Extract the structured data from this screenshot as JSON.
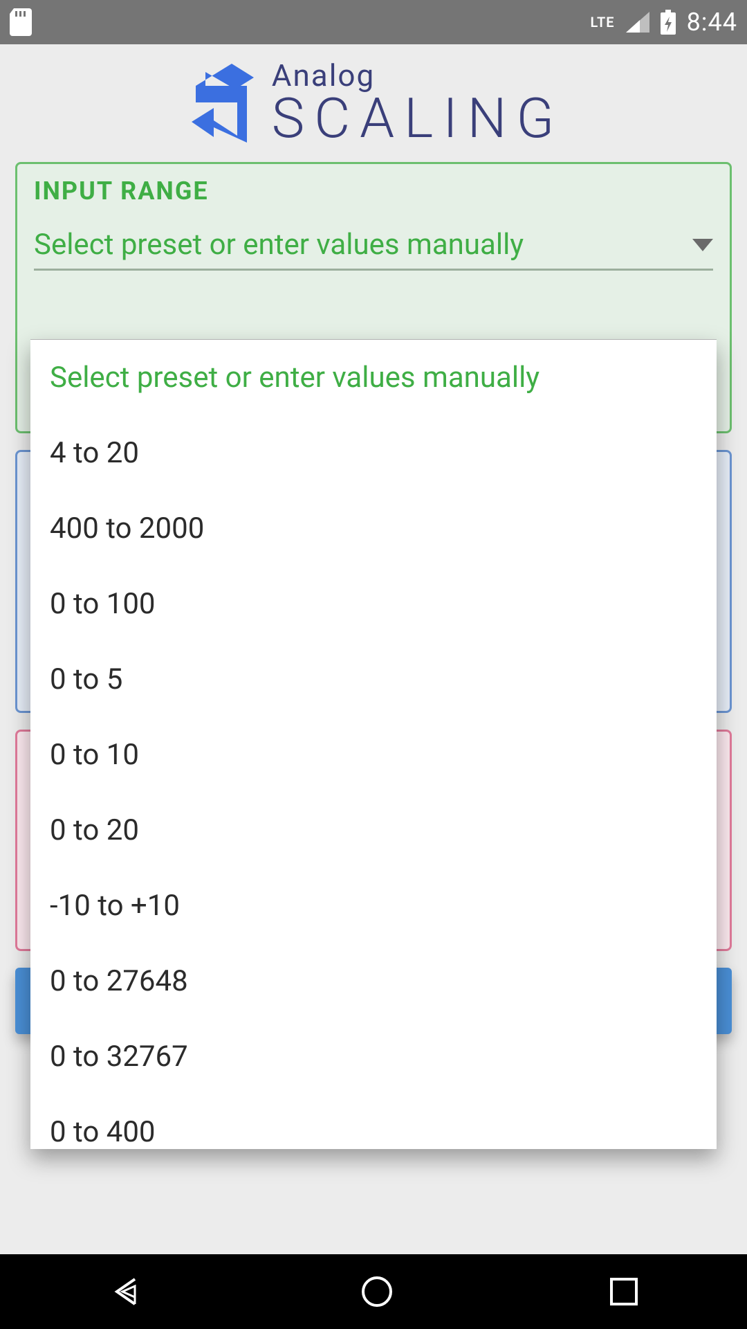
{
  "statusbar": {
    "network": "LTE",
    "clock": "8:44"
  },
  "logo": {
    "top": "Analog",
    "bottom": "SCALING",
    "color": "#3a3f7a",
    "icon_color": "#3b6fe0"
  },
  "input_range": {
    "title": "INPUT RANGE",
    "select_label": "Select preset or enter values manually",
    "title_color": "#3fae45",
    "border_color": "#6cbf6f",
    "bg_color": "#e5f0e6"
  },
  "cards_behind": {
    "output": {
      "border_color": "#6b95d2",
      "bg_color": "#e7eef8"
    },
    "scaled": {
      "border_color": "#e07a9a",
      "bg_color": "#fce9ef"
    }
  },
  "dropdown": {
    "options": [
      "Select preset or enter values manually",
      "4 to 20",
      "400 to 2000",
      "0 to 100",
      "0 to 5",
      "0 to 10",
      "0 to 20",
      "-10 to +10",
      "0 to 27648",
      "0 to 32767",
      "0 to 400"
    ],
    "selected_index": 0,
    "selected_color": "#3fae45",
    "text_color": "#2b2b2b",
    "bg_color": "#ffffff"
  },
  "buttons": {
    "fill_color": "#4a8fd6"
  }
}
